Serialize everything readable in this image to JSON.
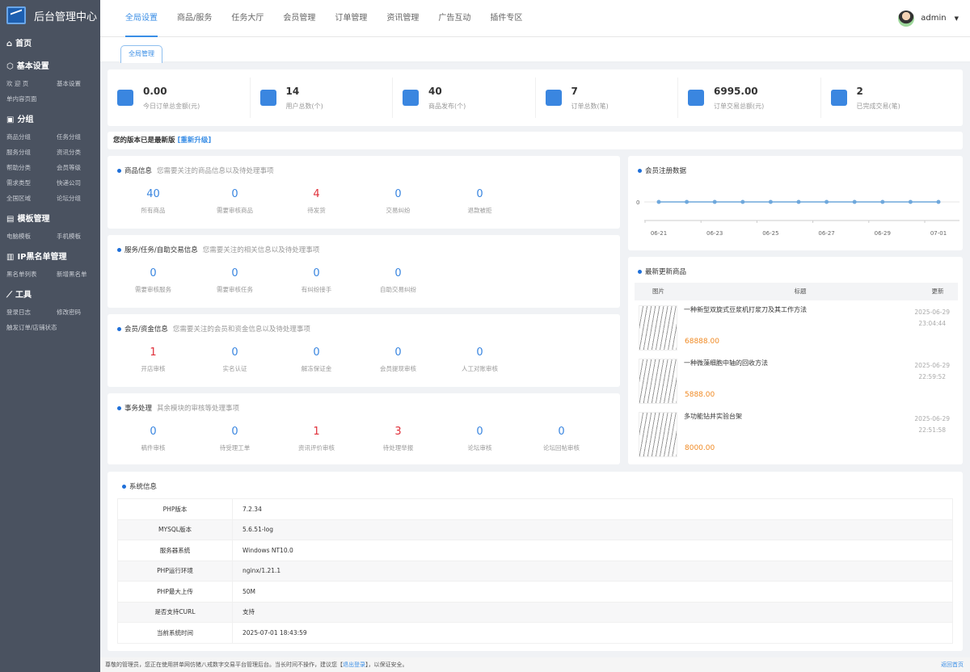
{
  "app": {
    "title": "后台管理中心"
  },
  "sidebar": {
    "groups": [
      {
        "title": "首页",
        "icon": "home-icon",
        "items": []
      },
      {
        "title": "基本设置",
        "icon": "cube-icon",
        "items": [
          "欢 迎 页",
          "基本设置",
          "单内容页面"
        ]
      },
      {
        "title": "分组",
        "icon": "briefcase-icon",
        "items": [
          "商品分组",
          "任务分组",
          "服务分组",
          "资讯分类",
          "帮助分类",
          "会员等级",
          "需求类型",
          "快递公司",
          "全国区域",
          "论坛分组"
        ]
      },
      {
        "title": "模板管理",
        "icon": "template-icon",
        "items": [
          "电脑模板",
          "手机模板"
        ]
      },
      {
        "title": "IP黑名单管理",
        "icon": "blacklist-icon",
        "items": [
          "黑名单列表",
          "新增黑名单"
        ]
      },
      {
        "title": "工具",
        "icon": "chart-line-icon",
        "items": [
          "登录日志",
          "修改密码",
          "触发订单/店铺状态"
        ]
      }
    ]
  },
  "topnav": {
    "items": [
      "全局设置",
      "商品/服务",
      "任务大厅",
      "会员管理",
      "订单管理",
      "资讯管理",
      "广告互动",
      "插件专区"
    ],
    "active": 0
  },
  "user": {
    "name": "admin"
  },
  "subtab": {
    "label": "全局管理"
  },
  "stats": [
    {
      "value": "0.00",
      "label": "今日订单总金额(元)",
      "icon": "receipt-icon"
    },
    {
      "value": "14",
      "label": "用户总数(个)",
      "icon": "user-icon"
    },
    {
      "value": "40",
      "label": "商品发布(个)",
      "icon": "bag-icon"
    },
    {
      "value": "7",
      "label": "订单总数(笔)",
      "icon": "layers-icon"
    },
    {
      "value": "6995.00",
      "label": "订单交易总额(元)",
      "icon": "bar-icon"
    },
    {
      "value": "2",
      "label": "已完成交易(笔)",
      "icon": "cup-icon"
    }
  ],
  "version": {
    "text": "您的版本已是最新版",
    "link": "[重新升级]"
  },
  "panels": [
    {
      "title": "商品信息",
      "desc": "您需要关注的商品信息以及待处理事项",
      "items": [
        {
          "n": "40",
          "l": "所有商品"
        },
        {
          "n": "0",
          "l": "需要审核商品"
        },
        {
          "n": "4",
          "l": "待发货",
          "red": true
        },
        {
          "n": "0",
          "l": "交易纠纷"
        },
        {
          "n": "0",
          "l": "退款被拒"
        }
      ]
    },
    {
      "title": "服务/任务/自助交易信息",
      "desc": "您需要关注的相关信息以及待处理事项",
      "items": [
        {
          "n": "0",
          "l": "需要审核服务"
        },
        {
          "n": "0",
          "l": "需要审核任务"
        },
        {
          "n": "0",
          "l": "有纠纷接手"
        },
        {
          "n": "0",
          "l": "自助交易纠纷"
        }
      ]
    },
    {
      "title": "会员/资金信息",
      "desc": "您需要关注的会员和资金信息以及待处理事项",
      "items": [
        {
          "n": "1",
          "l": "开店审核",
          "red": true
        },
        {
          "n": "0",
          "l": "实名认证"
        },
        {
          "n": "0",
          "l": "解冻保证金"
        },
        {
          "n": "0",
          "l": "会员提现审核"
        },
        {
          "n": "0",
          "l": "人工对账审核"
        }
      ]
    },
    {
      "title": "事务处理",
      "desc": "其余模块的审核等处理事项",
      "items": [
        {
          "n": "0",
          "l": "稿件审核"
        },
        {
          "n": "0",
          "l": "待受理工单"
        },
        {
          "n": "1",
          "l": "资讯评价审核",
          "red": true
        },
        {
          "n": "3",
          "l": "待处理举报",
          "red": true
        },
        {
          "n": "0",
          "l": "论坛审核"
        },
        {
          "n": "0",
          "l": "论坛回帖审核"
        }
      ]
    }
  ],
  "chart_data": {
    "type": "line",
    "title": "会员注册数据",
    "x": [
      "06-21",
      "06-22",
      "06-23",
      "06-24",
      "06-25",
      "06-26",
      "06-27",
      "06-28",
      "06-29",
      "06-30",
      "07-01"
    ],
    "tick_labels": [
      "06-21",
      "06-23",
      "06-25",
      "06-27",
      "06-29",
      "07-01"
    ],
    "y_ticks": [
      "0"
    ],
    "values": [
      0,
      0,
      0,
      0,
      0,
      0,
      0,
      0,
      0,
      0,
      0
    ],
    "color": "#6fa8dc"
  },
  "goods": {
    "title": "最新更新商品",
    "headers": [
      "图片",
      "标题",
      "更新"
    ],
    "rows": [
      {
        "title": "一种新型双旋式豆浆机打浆刀及其工作方法",
        "price": "68888.00",
        "date": "2025-06-29",
        "time": "23:04:44"
      },
      {
        "title": "一种微藻细胞中轴的回收方法",
        "price": "5888.00",
        "date": "2025-06-29",
        "time": "22:59:52"
      },
      {
        "title": "多功能钻井实验台架",
        "price": "8000.00",
        "date": "2025-06-29",
        "time": "22:51:58"
      }
    ]
  },
  "sysinfo": {
    "title": "系统信息",
    "rows": [
      [
        "PHP版本",
        "7.2.34"
      ],
      [
        "MYSQL版本",
        "5.6.51-log"
      ],
      [
        "服务器系统",
        "Windows NT10.0"
      ],
      [
        "PHP运行环境",
        "nginx/1.21.1"
      ],
      [
        "PHP最大上传",
        "50M"
      ],
      [
        "是否支持CURL",
        "支持"
      ],
      [
        "当前系统时间",
        "2025-07-01 18:43:59"
      ]
    ]
  },
  "footer": {
    "pre": "尊敬的管理员，您正在使用拼单网仿猪八戒数字交易平台管理后台。当长时间不操作，建议您【",
    "link": "退出登录",
    "post": "】，以保证安全。",
    "home": "返回首页"
  }
}
